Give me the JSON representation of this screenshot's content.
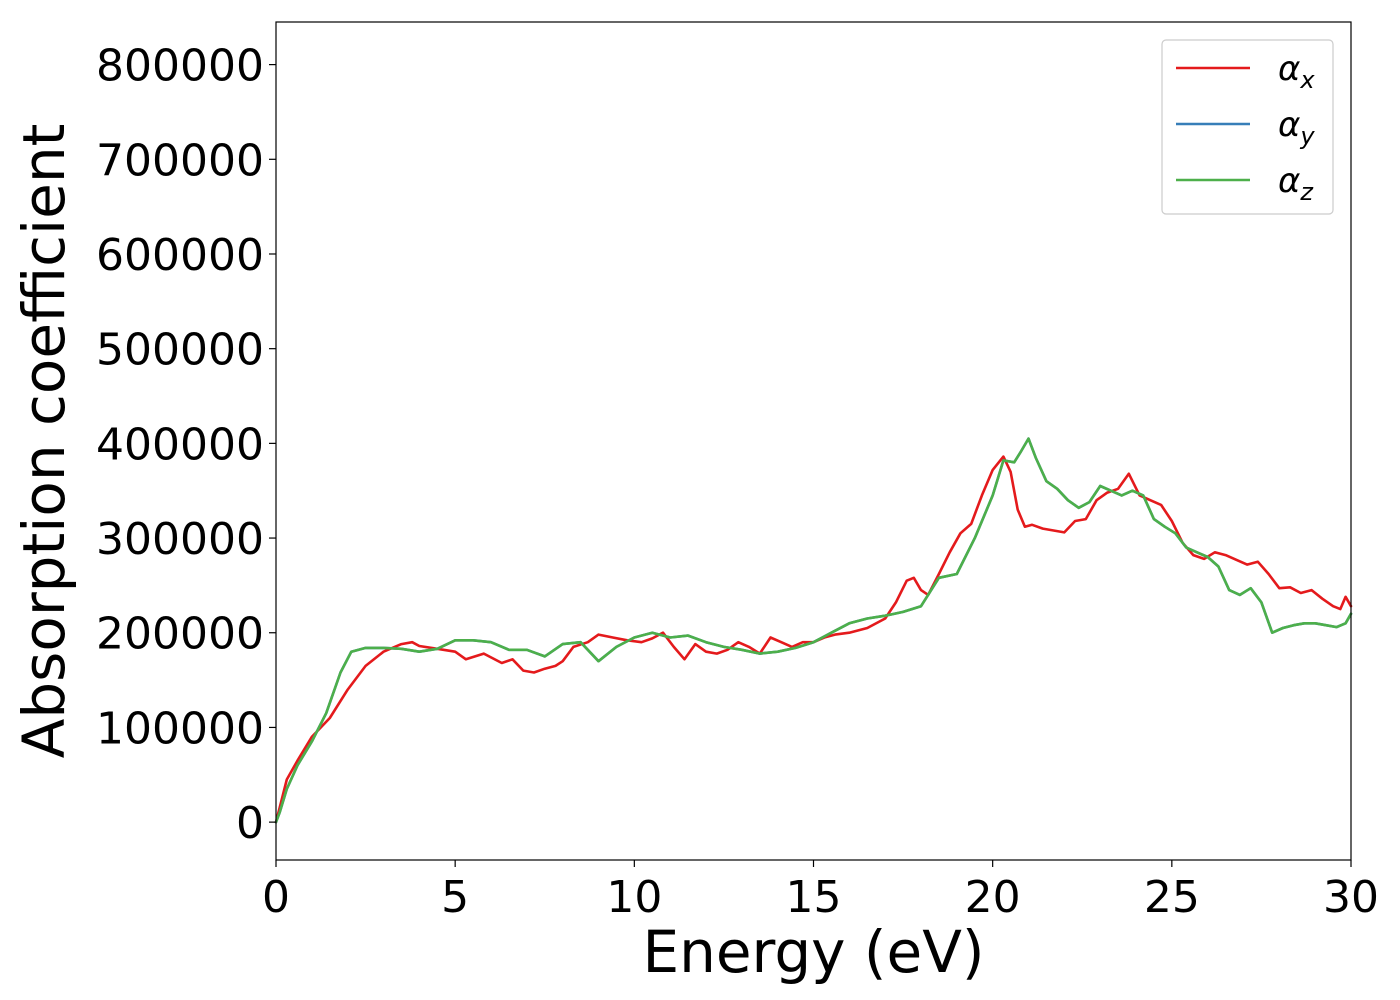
{
  "chart_data": {
    "type": "line",
    "xlabel": "Energy (eV)",
    "ylabel": "Absorption coefficient",
    "xlim": [
      0,
      30
    ],
    "ylim": [
      -40000,
      845000
    ],
    "xticks": [
      0,
      5,
      10,
      15,
      20,
      25,
      30
    ],
    "xtick_labels": [
      "0",
      "5",
      "10",
      "15",
      "20",
      "25",
      "30"
    ],
    "yticks": [
      0,
      100000,
      200000,
      300000,
      400000,
      500000,
      600000,
      700000,
      800000
    ],
    "ytick_labels": [
      "0",
      "100000",
      "200000",
      "300000",
      "400000",
      "500000",
      "600000",
      "700000",
      "800000"
    ],
    "grid": false,
    "legend_position": "top-right",
    "series": [
      {
        "name": "α_x",
        "label_main": "α",
        "label_sub": "x",
        "color": "#e41a1c",
        "x": [
          0,
          0.1,
          0.3,
          0.6,
          1.0,
          1.5,
          2.0,
          2.5,
          3.0,
          3.5,
          3.8,
          4.0,
          4.5,
          5.0,
          5.3,
          5.8,
          6.3,
          6.6,
          6.9,
          7.2,
          7.5,
          7.8,
          8.0,
          8.3,
          8.7,
          9.0,
          9.4,
          9.8,
          10.2,
          10.5,
          10.8,
          11.1,
          11.4,
          11.7,
          12.0,
          12.3,
          12.6,
          12.9,
          13.2,
          13.5,
          13.8,
          14.1,
          14.4,
          14.7,
          15.0,
          15.3,
          15.6,
          16.0,
          16.5,
          17.0,
          17.3,
          17.6,
          17.8,
          18.0,
          18.2,
          18.5,
          18.8,
          19.1,
          19.4,
          19.7,
          20.0,
          20.3,
          20.5,
          20.7,
          20.9,
          21.1,
          21.4,
          21.7,
          22.0,
          22.3,
          22.6,
          22.9,
          23.2,
          23.5,
          23.8,
          24.1,
          24.4,
          24.7,
          25.0,
          25.3,
          25.6,
          25.9,
          26.2,
          26.5,
          26.8,
          27.1,
          27.4,
          27.7,
          28.0,
          28.3,
          28.6,
          28.9,
          29.2,
          29.5,
          29.7,
          29.85,
          30.0
        ],
        "y": [
          0,
          15000,
          45000,
          65000,
          90000,
          110000,
          140000,
          165000,
          180000,
          188000,
          190000,
          186000,
          183000,
          180000,
          172000,
          178000,
          168000,
          172000,
          160000,
          158000,
          162000,
          165000,
          170000,
          185000,
          190000,
          198000,
          195000,
          192000,
          190000,
          194000,
          200000,
          185000,
          172000,
          188000,
          180000,
          178000,
          182000,
          190000,
          185000,
          178000,
          195000,
          190000,
          185000,
          190000,
          190000,
          195000,
          198000,
          200000,
          205000,
          215000,
          232000,
          255000,
          258000,
          245000,
          240000,
          262000,
          285000,
          305000,
          315000,
          345000,
          372000,
          386000,
          370000,
          330000,
          312000,
          314000,
          310000,
          308000,
          306000,
          318000,
          320000,
          340000,
          348000,
          352000,
          368000,
          345000,
          340000,
          335000,
          318000,
          295000,
          282000,
          278000,
          285000,
          282000,
          277000,
          272000,
          275000,
          262000,
          247000,
          248000,
          242000,
          245000,
          236000,
          228000,
          225000,
          238000,
          228000
        ]
      },
      {
        "name": "α_y",
        "label_main": "α",
        "label_sub": "y",
        "color": "#377eb8",
        "x": [
          0,
          0.1,
          0.3,
          0.6,
          1.0,
          1.4,
          1.8,
          2.1,
          2.5,
          3.0,
          3.5,
          4.0,
          4.5,
          5.0,
          5.5,
          6.0,
          6.5,
          7.0,
          7.5,
          8.0,
          8.5,
          9.0,
          9.5,
          10.0,
          10.5,
          11.0,
          11.5,
          12.0,
          12.5,
          13.0,
          13.5,
          14.0,
          14.5,
          15.0,
          15.5,
          16.0,
          16.5,
          17.0,
          17.5,
          18.0,
          18.5,
          19.0,
          19.5,
          20.0,
          20.3,
          20.6,
          20.8,
          21.0,
          21.2,
          21.5,
          21.8,
          22.1,
          22.4,
          22.7,
          23.0,
          23.3,
          23.6,
          23.9,
          24.2,
          24.5,
          24.8,
          25.1,
          25.4,
          25.7,
          26.0,
          26.3,
          26.6,
          26.9,
          27.2,
          27.5,
          27.8,
          28.1,
          28.4,
          28.7,
          29.0,
          29.3,
          29.6,
          29.85,
          30.0
        ],
        "y": [
          0,
          10000,
          35000,
          60000,
          85000,
          115000,
          158000,
          180000,
          184000,
          184000,
          183000,
          180000,
          183000,
          192000,
          192000,
          190000,
          182000,
          182000,
          175000,
          188000,
          190000,
          170000,
          185000,
          195000,
          200000,
          195000,
          197000,
          190000,
          185000,
          182000,
          178000,
          180000,
          184000,
          190000,
          200000,
          210000,
          215000,
          218000,
          222000,
          228000,
          258000,
          262000,
          300000,
          345000,
          382000,
          380000,
          392000,
          405000,
          385000,
          360000,
          352000,
          340000,
          332000,
          338000,
          355000,
          350000,
          345000,
          350000,
          345000,
          320000,
          312000,
          305000,
          290000,
          285000,
          280000,
          270000,
          245000,
          240000,
          247000,
          232000,
          200000,
          205000,
          208000,
          210000,
          210000,
          208000,
          206000,
          210000,
          220000
        ]
      },
      {
        "name": "α_z",
        "label_main": "α",
        "label_sub": "z",
        "color": "#4daf4a",
        "x": [
          0,
          0.1,
          0.3,
          0.6,
          1.0,
          1.4,
          1.8,
          2.1,
          2.5,
          3.0,
          3.5,
          4.0,
          4.5,
          5.0,
          5.5,
          6.0,
          6.5,
          7.0,
          7.5,
          8.0,
          8.5,
          9.0,
          9.5,
          10.0,
          10.5,
          11.0,
          11.5,
          12.0,
          12.5,
          13.0,
          13.5,
          14.0,
          14.5,
          15.0,
          15.5,
          16.0,
          16.5,
          17.0,
          17.5,
          18.0,
          18.5,
          19.0,
          19.5,
          20.0,
          20.3,
          20.6,
          20.8,
          21.0,
          21.2,
          21.5,
          21.8,
          22.1,
          22.4,
          22.7,
          23.0,
          23.3,
          23.6,
          23.9,
          24.2,
          24.5,
          24.8,
          25.1,
          25.4,
          25.7,
          26.0,
          26.3,
          26.6,
          26.9,
          27.2,
          27.5,
          27.8,
          28.1,
          28.4,
          28.7,
          29.0,
          29.3,
          29.6,
          29.85,
          30.0
        ],
        "y": [
          0,
          10000,
          35000,
          60000,
          85000,
          115000,
          158000,
          180000,
          184000,
          184000,
          183000,
          180000,
          183000,
          192000,
          192000,
          190000,
          182000,
          182000,
          175000,
          188000,
          190000,
          170000,
          185000,
          195000,
          200000,
          195000,
          197000,
          190000,
          185000,
          182000,
          178000,
          180000,
          184000,
          190000,
          200000,
          210000,
          215000,
          218000,
          222000,
          228000,
          258000,
          262000,
          300000,
          345000,
          382000,
          380000,
          392000,
          405000,
          385000,
          360000,
          352000,
          340000,
          332000,
          338000,
          355000,
          350000,
          345000,
          350000,
          345000,
          320000,
          312000,
          305000,
          290000,
          285000,
          280000,
          270000,
          245000,
          240000,
          247000,
          232000,
          200000,
          205000,
          208000,
          210000,
          210000,
          208000,
          206000,
          210000,
          220000
        ]
      }
    ]
  }
}
